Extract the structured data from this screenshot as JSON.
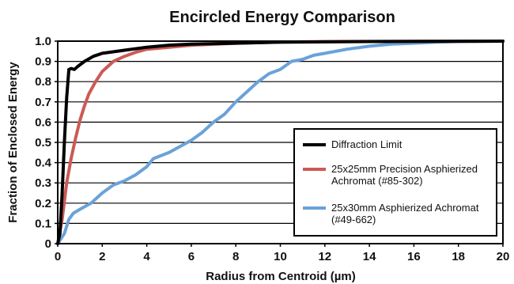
{
  "chart_data": {
    "type": "line",
    "title": "Encircled Energy Comparison",
    "xlabel": "Radius from Centroid (µm)",
    "ylabel": "Fraction of Enclosed Energy",
    "xlim": [
      0,
      20
    ],
    "ylim": [
      0,
      1.0
    ],
    "x_ticks": [
      "0",
      "2",
      "4",
      "6",
      "8",
      "10",
      "12",
      "14",
      "16",
      "18",
      "20"
    ],
    "y_ticks": [
      "0",
      "0.1",
      "0.2",
      "0.3",
      "0.4",
      "0.5",
      "0.6",
      "0.7",
      "0.8",
      "0.9",
      "1.0"
    ],
    "grid": "horizontal",
    "legend_position": "bottom-right",
    "series": [
      {
        "name": "Diffraction Limit",
        "color": "#000000",
        "points": [
          [
            0,
            0
          ],
          [
            0.1,
            0.05
          ],
          [
            0.2,
            0.25
          ],
          [
            0.3,
            0.5
          ],
          [
            0.4,
            0.72
          ],
          [
            0.5,
            0.86
          ],
          [
            0.6,
            0.865
          ],
          [
            0.75,
            0.86
          ],
          [
            0.9,
            0.875
          ],
          [
            1.2,
            0.9
          ],
          [
            1.6,
            0.925
          ],
          [
            2,
            0.94
          ],
          [
            3,
            0.955
          ],
          [
            4,
            0.97
          ],
          [
            5,
            0.98
          ],
          [
            6,
            0.985
          ],
          [
            8,
            0.99
          ],
          [
            10,
            0.995
          ],
          [
            14,
            0.998
          ],
          [
            20,
            1.0
          ]
        ]
      },
      {
        "name": "25x25mm Precision Asphierized Achromat (#85-302)",
        "color": "#cc5a55",
        "points": [
          [
            0,
            0
          ],
          [
            0.2,
            0.12
          ],
          [
            0.4,
            0.3
          ],
          [
            0.6,
            0.42
          ],
          [
            0.8,
            0.52
          ],
          [
            1.0,
            0.61
          ],
          [
            1.2,
            0.68
          ],
          [
            1.4,
            0.74
          ],
          [
            1.7,
            0.8
          ],
          [
            2.0,
            0.85
          ],
          [
            2.5,
            0.9
          ],
          [
            3,
            0.925
          ],
          [
            3.5,
            0.945
          ],
          [
            4,
            0.96
          ],
          [
            5,
            0.97
          ],
          [
            6,
            0.98
          ],
          [
            8,
            0.99
          ],
          [
            10,
            0.995
          ],
          [
            12,
            0.998
          ],
          [
            20,
            1.0
          ]
        ]
      },
      {
        "name": "25x30mm Asphierized Achromat (#49-662)",
        "color": "#6aa2d8",
        "points": [
          [
            0,
            0
          ],
          [
            0.3,
            0.05
          ],
          [
            0.5,
            0.12
          ],
          [
            0.7,
            0.15
          ],
          [
            1.0,
            0.17
          ],
          [
            1.5,
            0.2
          ],
          [
            2.0,
            0.25
          ],
          [
            2.5,
            0.29
          ],
          [
            3.0,
            0.31
          ],
          [
            3.5,
            0.34
          ],
          [
            4.0,
            0.38
          ],
          [
            4.3,
            0.42
          ],
          [
            5.0,
            0.45
          ],
          [
            5.5,
            0.48
          ],
          [
            6.0,
            0.51
          ],
          [
            6.5,
            0.55
          ],
          [
            7.0,
            0.6
          ],
          [
            7.5,
            0.64
          ],
          [
            8.0,
            0.7
          ],
          [
            8.5,
            0.75
          ],
          [
            9.0,
            0.8
          ],
          [
            9.5,
            0.84
          ],
          [
            10.0,
            0.86
          ],
          [
            10.5,
            0.9
          ],
          [
            11.0,
            0.91
          ],
          [
            11.5,
            0.93
          ],
          [
            12.0,
            0.94
          ],
          [
            13.0,
            0.96
          ],
          [
            14.0,
            0.975
          ],
          [
            15.0,
            0.985
          ],
          [
            16.0,
            0.99
          ],
          [
            17.0,
            0.995
          ],
          [
            18.0,
            0.998
          ],
          [
            20.0,
            1.0
          ]
        ]
      }
    ]
  }
}
